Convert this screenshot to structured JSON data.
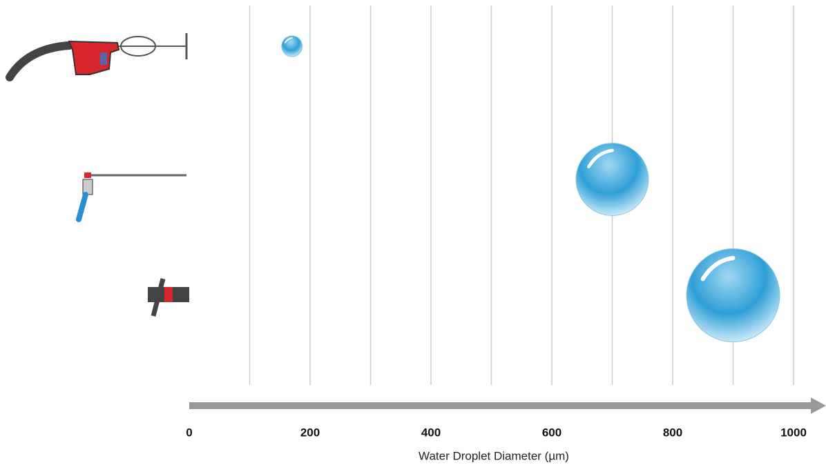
{
  "chart_data": {
    "type": "bubble",
    "x_label": "Water Droplet Diameter (µm)",
    "categories": [
      null,
      null,
      null
    ],
    "values": [
      170,
      700,
      900
    ],
    "color": "#3aa3d6",
    "xlim": [
      0,
      1000
    ],
    "xticks": [
      0,
      200,
      400,
      600,
      800,
      1000
    ],
    "xgrid": [
      100,
      200,
      300,
      400,
      500,
      600,
      700,
      800,
      900,
      1000
    ],
    "grid": true
  }
}
